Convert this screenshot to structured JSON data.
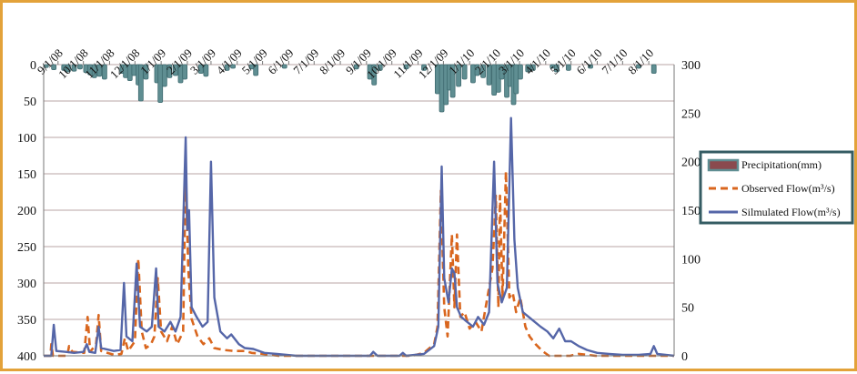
{
  "chart_data": {
    "type": "line",
    "title": "",
    "x_tick_labels": [
      "9/1/08",
      "10/1/08",
      "11/1/08",
      "12/1/08",
      "1/1/09",
      "2/1/09",
      "3/1/09",
      "4/1/09",
      "5/1/09",
      "6/1/09",
      "7/1/09",
      "8/1/09",
      "9/1/09",
      "10/1/09",
      "11/1/09",
      "12/1/09",
      "1/1/10",
      "2/1/10",
      "3/1/10",
      "4/1/10",
      "5/1/10",
      "6/1/10",
      "7/1/10",
      "8/1/10"
    ],
    "x_range": [
      "2008-08-15",
      "2010-08-31"
    ],
    "left_axis": {
      "label": "",
      "ticks": [
        0,
        50,
        100,
        150,
        200,
        250,
        300,
        350,
        400
      ],
      "range": [
        0,
        400
      ],
      "inverted": true,
      "series": "Precipitation(mm)"
    },
    "right_axis": {
      "label": "",
      "ticks": [
        0,
        50,
        100,
        150,
        200,
        250,
        300
      ],
      "range": [
        0,
        300
      ]
    },
    "grid": true,
    "legend_position": "right",
    "series": [
      {
        "name": "Precipitation(mm)",
        "kind": "bar",
        "axis": "left",
        "color": "#5f8e92",
        "points": [
          [
            "2008-08-18",
            4
          ],
          [
            "2008-08-27",
            7
          ],
          [
            "2008-09-08",
            8
          ],
          [
            "2008-09-13",
            10
          ],
          [
            "2008-09-20",
            9
          ],
          [
            "2008-09-27",
            6
          ],
          [
            "2008-10-04",
            11
          ],
          [
            "2008-10-09",
            14
          ],
          [
            "2008-10-14",
            18
          ],
          [
            "2008-10-20",
            16
          ],
          [
            "2008-10-26",
            20
          ],
          [
            "2008-11-16",
            12
          ],
          [
            "2008-11-20",
            18
          ],
          [
            "2008-11-25",
            22
          ],
          [
            "2008-11-30",
            15
          ],
          [
            "2008-12-05",
            28
          ],
          [
            "2008-12-08",
            50
          ],
          [
            "2008-12-14",
            20
          ],
          [
            "2008-12-27",
            25
          ],
          [
            "2008-12-31",
            52
          ],
          [
            "2009-01-05",
            30
          ],
          [
            "2009-01-11",
            18
          ],
          [
            "2009-01-18",
            15
          ],
          [
            "2009-01-24",
            25
          ],
          [
            "2009-01-29",
            20
          ],
          [
            "2009-02-17",
            12
          ],
          [
            "2009-02-23",
            16
          ],
          [
            "2009-03-20",
            8
          ],
          [
            "2009-03-27",
            5
          ],
          [
            "2009-04-18",
            6
          ],
          [
            "2009-04-23",
            15
          ],
          [
            "2009-05-27",
            5
          ],
          [
            "2009-08-20",
            6
          ],
          [
            "2009-09-05",
            20
          ],
          [
            "2009-09-10",
            28
          ],
          [
            "2009-09-17",
            8
          ],
          [
            "2009-10-18",
            6
          ],
          [
            "2009-11-08",
            8
          ],
          [
            "2009-11-24",
            40
          ],
          [
            "2009-11-29",
            65
          ],
          [
            "2009-12-04",
            55
          ],
          [
            "2009-12-08",
            35
          ],
          [
            "2009-12-12",
            45
          ],
          [
            "2009-12-19",
            30
          ],
          [
            "2009-12-26",
            20
          ],
          [
            "2010-01-05",
            25
          ],
          [
            "2010-01-10",
            15
          ],
          [
            "2010-01-17",
            18
          ],
          [
            "2010-01-24",
            28
          ],
          [
            "2010-01-30",
            42
          ],
          [
            "2010-02-04",
            38
          ],
          [
            "2010-02-08",
            20
          ],
          [
            "2010-02-14",
            45
          ],
          [
            "2010-02-18",
            30
          ],
          [
            "2010-02-22",
            55
          ],
          [
            "2010-02-25",
            40
          ],
          [
            "2010-03-02",
            20
          ],
          [
            "2010-03-11",
            10
          ],
          [
            "2010-03-17",
            8
          ],
          [
            "2010-04-09",
            5
          ],
          [
            "2010-04-14",
            10
          ],
          [
            "2010-04-28",
            8
          ],
          [
            "2010-05-24",
            5
          ],
          [
            "2010-07-20",
            5
          ],
          [
            "2010-08-07",
            12
          ]
        ]
      },
      {
        "name": "Observed Flow(m³/s)",
        "kind": "line",
        "axis": "right",
        "color": "#d9661e",
        "dash": true,
        "points": [
          [
            "2008-08-15",
            0
          ],
          [
            "2008-08-23",
            0
          ],
          [
            "2008-08-24",
            12
          ],
          [
            "2008-08-26",
            0
          ],
          [
            "2008-09-12",
            0
          ],
          [
            "2008-09-14",
            10
          ],
          [
            "2008-09-18",
            4
          ],
          [
            "2008-10-02",
            3
          ],
          [
            "2008-10-06",
            40
          ],
          [
            "2008-10-09",
            4
          ],
          [
            "2008-10-16",
            12
          ],
          [
            "2008-10-19",
            42
          ],
          [
            "2008-10-22",
            5
          ],
          [
            "2008-11-06",
            1
          ],
          [
            "2008-11-15",
            2
          ],
          [
            "2008-11-19",
            18
          ],
          [
            "2008-11-23",
            5
          ],
          [
            "2008-12-01",
            15
          ],
          [
            "2008-12-05",
            100
          ],
          [
            "2008-12-09",
            25
          ],
          [
            "2008-12-14",
            8
          ],
          [
            "2008-12-20",
            12
          ],
          [
            "2008-12-24",
            20
          ],
          [
            "2008-12-28",
            80
          ],
          [
            "2009-01-01",
            25
          ],
          [
            "2009-01-08",
            15
          ],
          [
            "2009-01-14",
            30
          ],
          [
            "2009-01-20",
            12
          ],
          [
            "2009-01-27",
            25
          ],
          [
            "2009-01-30",
            190
          ],
          [
            "2009-02-02",
            90
          ],
          [
            "2009-02-06",
            38
          ],
          [
            "2009-02-13",
            20
          ],
          [
            "2009-02-20",
            12
          ],
          [
            "2009-02-27",
            18
          ],
          [
            "2009-03-05",
            8
          ],
          [
            "2009-03-16",
            6
          ],
          [
            "2009-03-28",
            5
          ],
          [
            "2009-04-10",
            5
          ],
          [
            "2009-04-18",
            3
          ],
          [
            "2009-05-02",
            2
          ],
          [
            "2009-05-20",
            0
          ],
          [
            "2009-10-25",
            0
          ],
          [
            "2009-11-08",
            3
          ],
          [
            "2009-11-20",
            12
          ],
          [
            "2009-11-24",
            30
          ],
          [
            "2009-11-28",
            170
          ],
          [
            "2009-12-02",
            50
          ],
          [
            "2009-12-06",
            20
          ],
          [
            "2009-12-11",
            125
          ],
          [
            "2009-12-14",
            50
          ],
          [
            "2009-12-17",
            125
          ],
          [
            "2009-12-21",
            40
          ],
          [
            "2009-12-26",
            45
          ],
          [
            "2010-01-01",
            28
          ],
          [
            "2010-01-08",
            35
          ],
          [
            "2010-01-15",
            25
          ],
          [
            "2010-01-22",
            60
          ],
          [
            "2010-01-28",
            90
          ],
          [
            "2010-02-01",
            165
          ],
          [
            "2010-02-04",
            50
          ],
          [
            "2010-02-06",
            165
          ],
          [
            "2010-02-09",
            60
          ],
          [
            "2010-02-13",
            190
          ],
          [
            "2010-02-17",
            60
          ],
          [
            "2010-02-21",
            65
          ],
          [
            "2010-02-25",
            45
          ],
          [
            "2010-03-02",
            60
          ],
          [
            "2010-03-08",
            30
          ],
          [
            "2010-03-13",
            20
          ],
          [
            "2010-03-20",
            12
          ],
          [
            "2010-03-28",
            5
          ],
          [
            "2010-04-05",
            0
          ],
          [
            "2010-04-30",
            0
          ],
          [
            "2010-05-10",
            2
          ],
          [
            "2010-05-30",
            0
          ],
          [
            "2010-08-31",
            0
          ]
        ]
      },
      {
        "name": "Silmulated Flow(m³/s)",
        "kind": "line",
        "axis": "right",
        "color": "#5566a8",
        "points": [
          [
            "2008-08-15",
            0
          ],
          [
            "2008-08-24",
            0
          ],
          [
            "2008-08-27",
            32
          ],
          [
            "2008-08-30",
            5
          ],
          [
            "2008-09-10",
            4
          ],
          [
            "2008-09-20",
            3
          ],
          [
            "2008-10-01",
            4
          ],
          [
            "2008-10-05",
            12
          ],
          [
            "2008-10-08",
            4
          ],
          [
            "2008-10-15",
            3
          ],
          [
            "2008-10-19",
            30
          ],
          [
            "2008-10-22",
            8
          ],
          [
            "2008-11-06",
            5
          ],
          [
            "2008-11-14",
            6
          ],
          [
            "2008-11-18",
            75
          ],
          [
            "2008-11-21",
            20
          ],
          [
            "2008-11-28",
            15
          ],
          [
            "2008-12-03",
            95
          ],
          [
            "2008-12-07",
            30
          ],
          [
            "2008-12-15",
            25
          ],
          [
            "2008-12-21",
            30
          ],
          [
            "2008-12-26",
            90
          ],
          [
            "2008-12-29",
            30
          ],
          [
            "2009-01-05",
            25
          ],
          [
            "2009-01-12",
            35
          ],
          [
            "2009-01-18",
            25
          ],
          [
            "2009-01-24",
            40
          ],
          [
            "2009-01-30",
            225
          ],
          [
            "2009-02-01",
            130
          ],
          [
            "2009-02-03",
            150
          ],
          [
            "2009-02-06",
            50
          ],
          [
            "2009-02-12",
            40
          ],
          [
            "2009-02-19",
            30
          ],
          [
            "2009-02-25",
            35
          ],
          [
            "2009-03-01",
            200
          ],
          [
            "2009-03-05",
            60
          ],
          [
            "2009-03-12",
            25
          ],
          [
            "2009-03-20",
            18
          ],
          [
            "2009-03-25",
            22
          ],
          [
            "2009-04-03",
            12
          ],
          [
            "2009-04-10",
            8
          ],
          [
            "2009-04-20",
            7
          ],
          [
            "2009-05-03",
            3
          ],
          [
            "2009-05-18",
            2
          ],
          [
            "2009-06-10",
            0
          ],
          [
            "2009-09-05",
            0
          ],
          [
            "2009-09-09",
            4
          ],
          [
            "2009-09-14",
            0
          ],
          [
            "2009-10-10",
            0
          ],
          [
            "2009-10-14",
            3
          ],
          [
            "2009-10-18",
            0
          ],
          [
            "2009-11-08",
            2
          ],
          [
            "2009-11-20",
            10
          ],
          [
            "2009-11-25",
            30
          ],
          [
            "2009-11-29",
            195
          ],
          [
            "2009-12-02",
            80
          ],
          [
            "2009-12-07",
            55
          ],
          [
            "2009-12-11",
            90
          ],
          [
            "2009-12-14",
            85
          ],
          [
            "2009-12-17",
            50
          ],
          [
            "2009-12-22",
            40
          ],
          [
            "2009-12-29",
            35
          ],
          [
            "2010-01-05",
            30
          ],
          [
            "2010-01-11",
            40
          ],
          [
            "2010-01-18",
            32
          ],
          [
            "2010-01-24",
            45
          ],
          [
            "2010-01-30",
            200
          ],
          [
            "2010-02-03",
            75
          ],
          [
            "2010-02-08",
            55
          ],
          [
            "2010-02-14",
            70
          ],
          [
            "2010-02-19",
            245
          ],
          [
            "2010-02-23",
            120
          ],
          [
            "2010-02-27",
            70
          ],
          [
            "2010-03-05",
            45
          ],
          [
            "2010-03-12",
            40
          ],
          [
            "2010-03-19",
            35
          ],
          [
            "2010-03-26",
            30
          ],
          [
            "2010-04-03",
            25
          ],
          [
            "2010-04-10",
            18
          ],
          [
            "2010-04-17",
            28
          ],
          [
            "2010-04-24",
            15
          ],
          [
            "2010-05-01",
            15
          ],
          [
            "2010-05-10",
            10
          ],
          [
            "2010-05-20",
            6
          ],
          [
            "2010-06-01",
            3
          ],
          [
            "2010-06-15",
            2
          ],
          [
            "2010-07-01",
            1
          ],
          [
            "2010-07-20",
            1
          ],
          [
            "2010-08-03",
            2
          ],
          [
            "2010-08-07",
            10
          ],
          [
            "2010-08-11",
            2
          ],
          [
            "2010-08-31",
            0
          ]
        ]
      }
    ],
    "legend": [
      {
        "label": "Precipitation(mm)",
        "swatch": "bar"
      },
      {
        "label": "Observed Flow(m³/s)",
        "swatch": "dash"
      },
      {
        "label": "Silmulated Flow(m³/s)",
        "swatch": "line"
      }
    ]
  }
}
